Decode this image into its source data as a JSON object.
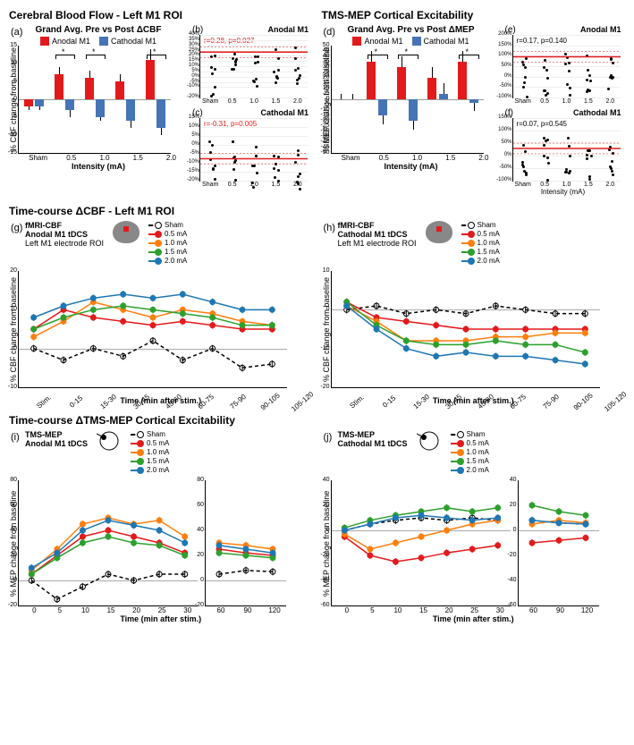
{
  "colors": {
    "anodal": "#e31a1c",
    "cathodal": "#4575b4",
    "sham": "#000000",
    "i05": "#e31a1c",
    "i10": "#ff7f0e",
    "i15": "#2ca02c",
    "i20": "#1f77b4",
    "grid": "#e0e0e0"
  },
  "row1": {
    "left": {
      "title": "Cerebral Blood Flow - Left M1 ROI",
      "label_a": "(a)",
      "subtitle": "Grand Avg. Pre vs Post ΔCBF",
      "legend_anodal": "Anodal M1",
      "legend_cathodal": "Cathodal M1",
      "ylabel": "% CBF change from baseline",
      "xlabel": "Intensity (mA)",
      "categories": [
        "Sham",
        "0.5",
        "1.0",
        "1.5",
        "2.0"
      ],
      "ylim": [
        -15,
        15
      ],
      "anodal": [
        -2,
        7,
        6,
        5,
        11
      ],
      "cathodal": [
        -2,
        -3,
        -5,
        -6,
        -8
      ],
      "anodal_err": [
        1,
        2,
        2,
        2,
        3
      ],
      "cathodal_err": [
        1,
        2,
        1,
        2,
        2
      ],
      "stars": [
        1,
        2,
        4
      ]
    },
    "panel_b": {
      "label": "(b)",
      "title": "Anodal M1",
      "reg": "r=0.28, p=0.027",
      "ylabel": "",
      "xlabel": "",
      "categories": [
        "Sham",
        "0.5",
        "1.0",
        "1.5",
        "2.0"
      ],
      "ylim": [
        -20,
        40
      ],
      "yticks": [
        -20,
        -10,
        -5,
        0,
        5,
        10,
        15,
        20,
        25,
        30,
        35,
        40
      ],
      "slope": 0.25,
      "intercept": 0.1
    },
    "panel_c": {
      "label": "(c)",
      "title": "Cathodal M1",
      "reg": "r=-0.31, p=0.005",
      "categories": [
        "Sham",
        "0.5",
        "1.0",
        "1.5",
        "2.0"
      ],
      "ylim": [
        -20,
        15
      ],
      "yticks": [
        -20,
        -15,
        -10,
        -5,
        0,
        5,
        10,
        15
      ],
      "slope": -0.2,
      "intercept": -0.05
    },
    "right": {
      "title": "TMS-MEP Cortical Excitability",
      "label_d": "(d)",
      "subtitle": "Grand Avg. Pre vs Post ΔMEP",
      "legend_anodal": "Anodal M1",
      "legend_cathodal": "Cathodal M1",
      "ylabel": "% MEP change from baseline",
      "xlabel": "Intensity (mA)",
      "categories": [
        "Sham",
        "0.5",
        "1.0",
        "1.5",
        "2.0"
      ],
      "ylim": [
        -50,
        50
      ],
      "anodal": [
        0,
        35,
        30,
        20,
        35
      ],
      "cathodal": [
        0,
        -15,
        -20,
        5,
        -3
      ],
      "anodal_err": [
        5,
        10,
        10,
        10,
        10
      ],
      "cathodal_err": [
        5,
        8,
        8,
        10,
        8
      ],
      "stars": [
        1,
        2,
        4
      ]
    },
    "panel_e": {
      "label": "(e)",
      "title": "Anodal M1",
      "reg": "r=0.17, p=0.140",
      "categories": [
        "Sham",
        "0.5",
        "1.0",
        "1.5",
        "2.0"
      ],
      "ylim": [
        -100,
        200
      ],
      "yticks": [
        -100,
        -50,
        0,
        50,
        100,
        150,
        200
      ],
      "slope": 0.1,
      "intercept": 0.1
    },
    "panel_f": {
      "label": "(f)",
      "title": "Cathodal M1",
      "reg": "r=0.07, p=0.545",
      "categories": [
        "Sham",
        "0.5",
        "1.0",
        "1.5",
        "2.0"
      ],
      "ylim": [
        -100,
        150
      ],
      "yticks": [
        -100,
        -50,
        0,
        50,
        100,
        150
      ],
      "slope": 0.03,
      "intercept": 0.0
    }
  },
  "row2": {
    "title": "Time-course ΔCBF - Left M1 ROI",
    "label_g": "(g)",
    "label_h": "(h)",
    "g_subtitle1": "fMRI-CBF",
    "g_subtitle2": "Anodal M1 tDCS",
    "g_subtitle3": "Left M1 electrode ROI",
    "h_subtitle1": "fMRI-CBF",
    "h_subtitle2": "Cathodal M1 tDCS",
    "h_subtitle3": "Left M1 electrode ROI",
    "ylabel": "% CBF change from baseline",
    "xlabel": "Time (min after stim.)",
    "xticks": [
      "Stim.",
      "0-15",
      "15-30",
      "30-45",
      "45-60",
      "60-75",
      "75-90",
      "90-105",
      "105-120"
    ],
    "ylim": [
      -10,
      20
    ],
    "h_ylim": [
      -20,
      10
    ],
    "legend_sham": "Sham",
    "legend_05": "0.5 mA",
    "legend_10": "1.0 mA",
    "legend_15": "1.5 mA",
    "legend_20": "2.0 mA",
    "g_series": {
      "sham": [
        0,
        -3,
        0,
        -2,
        2,
        -3,
        0,
        -5,
        -4
      ],
      "i05": [
        5,
        10,
        8,
        7,
        6,
        7,
        6,
        5,
        5
      ],
      "i10": [
        3,
        7,
        12,
        10,
        8,
        10,
        9,
        7,
        6
      ],
      "i15": [
        5,
        8,
        10,
        11,
        10,
        9,
        8,
        6,
        6
      ],
      "i20": [
        8,
        11,
        13,
        14,
        13,
        14,
        12,
        10,
        10
      ]
    },
    "h_series": {
      "sham": [
        0,
        1,
        -1,
        0,
        -1,
        1,
        0,
        -1,
        -1
      ],
      "i05": [
        2,
        -2,
        -3,
        -4,
        -5,
        -5,
        -5,
        -5,
        -5
      ],
      "i10": [
        1,
        -3,
        -8,
        -8,
        -8,
        -7,
        -7,
        -6,
        -6
      ],
      "i15": [
        2,
        -4,
        -8,
        -9,
        -9,
        -8,
        -9,
        -9,
        -11
      ],
      "i20": [
        1,
        -5,
        -10,
        -12,
        -11,
        -12,
        -12,
        -13,
        -14
      ]
    }
  },
  "row3": {
    "title": "Time-course ΔTMS-MEP Cortical Excitability",
    "label_i": "(i)",
    "label_j": "(j)",
    "i_subtitle1": "TMS-MEP",
    "i_subtitle2": "Anodal M1 tDCS",
    "j_subtitle1": "TMS-MEP",
    "j_subtitle2": "Cathodal M1 tDCS",
    "ylabel": "% MEP change from baseline",
    "xlabel": "Time (min after stim.)",
    "xticks_a": [
      "0",
      "5",
      "10",
      "15",
      "20",
      "25",
      "30"
    ],
    "xticks_b": [
      "60",
      "90",
      "120"
    ],
    "ylim": [
      -20,
      80
    ],
    "j_ylim": [
      -60,
      40
    ],
    "legend_sham": "Sham",
    "legend_05": "0.5 mA",
    "legend_10": "1.0 mA",
    "legend_15": "1.5 mA",
    "legend_20": "2.0 mA",
    "i_series_a": {
      "sham": [
        0,
        -15,
        -5,
        5,
        0,
        5,
        5
      ],
      "i05": [
        5,
        20,
        35,
        40,
        35,
        30,
        22
      ],
      "i10": [
        8,
        25,
        45,
        50,
        45,
        48,
        35
      ],
      "i15": [
        5,
        18,
        30,
        35,
        30,
        28,
        20
      ],
      "i20": [
        10,
        22,
        40,
        48,
        44,
        40,
        30
      ]
    },
    "i_series_b": {
      "sham": [
        5,
        8,
        7
      ],
      "i05": [
        25,
        22,
        20
      ],
      "i10": [
        30,
        28,
        25
      ],
      "i15": [
        22,
        20,
        18
      ],
      "i20": [
        28,
        25,
        22
      ]
    },
    "j_series_a": {
      "sham": [
        0,
        5,
        8,
        10,
        8,
        10,
        8
      ],
      "i05": [
        -5,
        -20,
        -25,
        -22,
        -18,
        -15,
        -12
      ],
      "i10": [
        -3,
        -15,
        -10,
        -5,
        0,
        5,
        8
      ],
      "i15": [
        2,
        8,
        12,
        15,
        18,
        15,
        18
      ],
      "i20": [
        0,
        5,
        10,
        12,
        10,
        8,
        10
      ]
    },
    "j_series_b": {
      "sham": [
        8,
        6,
        5
      ],
      "i05": [
        -10,
        -8,
        -6
      ],
      "i10": [
        5,
        8,
        6
      ],
      "i15": [
        20,
        15,
        12
      ],
      "i20": [
        8,
        6,
        5
      ]
    }
  }
}
